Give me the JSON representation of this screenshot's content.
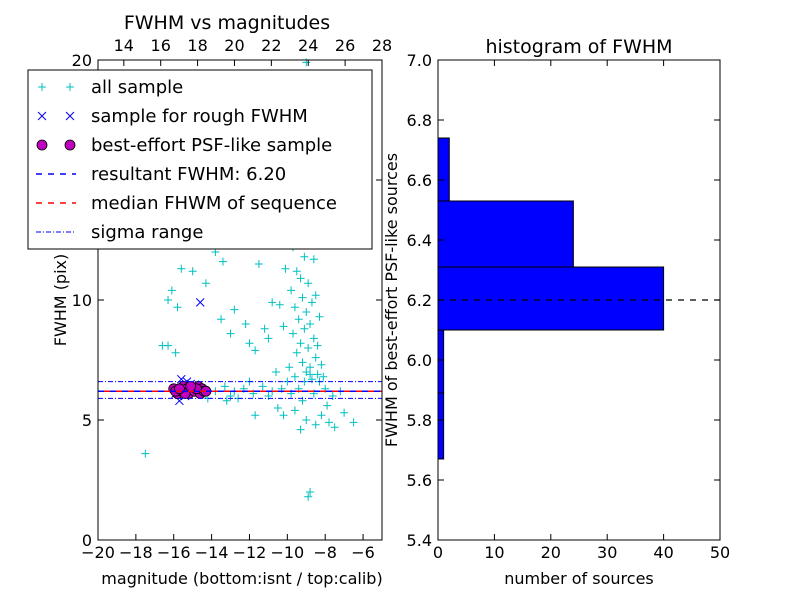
{
  "chart_data": [
    {
      "type": "scatter",
      "title": "FWHM vs magnitudes",
      "xlabel": "magnitude (bottom:isnt / top:calib)",
      "ylabel": "FWHM (pix)",
      "xlim": [
        -20,
        -5
      ],
      "ylim": [
        0,
        20
      ],
      "xticks": [
        -20,
        -18,
        -16,
        -14,
        -12,
        -10,
        -8,
        -6
      ],
      "yticks": [
        0,
        5,
        10,
        15,
        20
      ],
      "top_xlim": [
        12.6,
        28
      ],
      "top_xticks": [
        14,
        16,
        18,
        20,
        22,
        24,
        26,
        28
      ],
      "legend_position": "upper-left",
      "grid": false,
      "hlines": {
        "resultant": 6.2,
        "median": 6.2,
        "sigma_upper": 6.6,
        "sigma_lower": 5.9
      },
      "series": [
        {
          "name": "all sample",
          "marker": "plus",
          "color": "#00bfbf",
          "points": [
            [
              -9.0,
              19.9
            ],
            [
              -9.6,
              14.3
            ],
            [
              -9.2,
              13.2
            ],
            [
              -9.4,
              12.6
            ],
            [
              -9.7,
              12.2
            ],
            [
              -9.1,
              11.8
            ],
            [
              -9.5,
              11.2
            ],
            [
              -9.3,
              10.9
            ],
            [
              -8.9,
              10.7
            ],
            [
              -9.8,
              10.4
            ],
            [
              -9.2,
              10.1
            ],
            [
              -8.7,
              9.9
            ],
            [
              -9.6,
              9.7
            ],
            [
              -9.0,
              9.5
            ],
            [
              -9.4,
              9.2
            ],
            [
              -8.8,
              9.0
            ],
            [
              -9.1,
              8.8
            ],
            [
              -9.7,
              8.6
            ],
            [
              -8.6,
              8.4
            ],
            [
              -9.3,
              8.2
            ],
            [
              -8.9,
              8.0
            ],
            [
              -9.5,
              7.8
            ],
            [
              -8.5,
              7.6
            ],
            [
              -9.2,
              7.4
            ],
            [
              -8.8,
              7.2
            ],
            [
              -9.0,
              7.0
            ],
            [
              -8.4,
              6.9
            ],
            [
              -9.6,
              6.8
            ],
            [
              -8.7,
              6.7
            ],
            [
              -9.1,
              6.6
            ],
            [
              -10.0,
              13.8
            ],
            [
              -10.3,
              12.9
            ],
            [
              -10.1,
              11.3
            ],
            [
              -10.4,
              9.8
            ],
            [
              -10.2,
              8.9
            ],
            [
              -8.6,
              11.7
            ],
            [
              -8.5,
              10.2
            ],
            [
              -8.3,
              9.3
            ],
            [
              -8.4,
              8.1
            ],
            [
              -8.2,
              7.3
            ],
            [
              -11.5,
              11.5
            ],
            [
              -12.2,
              9.0
            ],
            [
              -11.0,
              8.4
            ],
            [
              -13.0,
              8.6
            ],
            [
              -12.8,
              9.6
            ],
            [
              -11.7,
              7.9
            ],
            [
              -13.5,
              9.2
            ],
            [
              -10.8,
              9.9
            ],
            [
              -12.0,
              8.2
            ],
            [
              -11.2,
              8.8
            ],
            [
              -16.1,
              10.4
            ],
            [
              -15.8,
              9.7
            ],
            [
              -16.3,
              8.1
            ],
            [
              -15.9,
              7.8
            ],
            [
              -16.6,
              8.1
            ],
            [
              -15.0,
              11.2
            ],
            [
              -14.3,
              10.7
            ],
            [
              -15.6,
              11.3
            ],
            [
              -13.8,
              12.0
            ],
            [
              -14.8,
              12.6
            ],
            [
              -15.3,
              12.9
            ],
            [
              -15.5,
              13.0
            ],
            [
              -16.0,
              12.4
            ],
            [
              -13.4,
              11.6
            ],
            [
              -16.3,
              10.0
            ],
            [
              -17.5,
              3.6
            ],
            [
              -7.0,
              5.3
            ],
            [
              -6.5,
              4.9
            ],
            [
              -7.5,
              4.7
            ],
            [
              -7.8,
              4.9
            ],
            [
              -8.2,
              5.2
            ],
            [
              -8.8,
              2.0
            ],
            [
              -8.9,
              1.8
            ],
            [
              -9.0,
              5.0
            ],
            [
              -9.3,
              4.6
            ],
            [
              -10.2,
              5.2
            ],
            [
              -11.7,
              5.2
            ],
            [
              -12.6,
              5.9
            ],
            [
              -13.2,
              5.8
            ],
            [
              -14.2,
              5.9
            ],
            [
              -10.5,
              5.5
            ],
            [
              -9.6,
              5.4
            ],
            [
              -8.5,
              4.8
            ],
            [
              -7.2,
              6.2
            ],
            [
              -7.6,
              6.0
            ],
            [
              -8.0,
              6.3
            ],
            [
              -8.3,
              6.6
            ],
            [
              -8.6,
              6.1
            ],
            [
              -9.4,
              6.3
            ],
            [
              -9.8,
              6.1
            ],
            [
              -10.3,
              6.3
            ],
            [
              -10.8,
              6.2
            ],
            [
              -11.3,
              6.4
            ],
            [
              -11.8,
              6.1
            ],
            [
              -12.3,
              6.3
            ],
            [
              -12.8,
              6.2
            ],
            [
              -13.3,
              6.4
            ],
            [
              -13.8,
              6.2
            ],
            [
              -14.3,
              6.1
            ],
            [
              -14.7,
              6.5
            ],
            [
              -15.2,
              6.4
            ],
            [
              -10.0,
              6.6
            ],
            [
              -11.0,
              6.0
            ],
            [
              -12.0,
              6.6
            ],
            [
              -13.0,
              6.0
            ],
            [
              -9.2,
              5.8
            ],
            [
              -8.8,
              6.9
            ],
            [
              -9.9,
              7.2
            ],
            [
              -10.6,
              7.0
            ],
            [
              -8.1,
              6.8
            ],
            [
              -7.9,
              5.6
            ]
          ]
        },
        {
          "name": "sample for rough FWHM",
          "marker": "x",
          "color": "#0000ff",
          "points": [
            [
              -14.6,
              9.9
            ],
            [
              -15.6,
              6.7
            ],
            [
              -15.3,
              6.6
            ],
            [
              -15.8,
              6.3
            ],
            [
              -15.4,
              6.0
            ],
            [
              -15.7,
              5.8
            ],
            [
              -15.2,
              6.2
            ],
            [
              -14.9,
              6.4
            ],
            [
              -15.9,
              6.1
            ],
            [
              -15.1,
              6.5
            ]
          ]
        },
        {
          "name": "best-effort PSF-like sample",
          "marker": "circle",
          "color": "#bf00bf",
          "points": [
            [
              -16.0,
              6.3
            ],
            [
              -15.8,
              6.1
            ],
            [
              -15.6,
              6.2
            ],
            [
              -15.5,
              6.4
            ],
            [
              -15.3,
              6.3
            ],
            [
              -15.2,
              6.1
            ],
            [
              -15.0,
              6.3
            ],
            [
              -14.9,
              6.2
            ],
            [
              -14.7,
              6.4
            ],
            [
              -14.6,
              6.1
            ],
            [
              -14.5,
              6.3
            ],
            [
              -14.4,
              6.2
            ],
            [
              -15.9,
              6.2
            ],
            [
              -15.4,
              6.1
            ],
            [
              -14.8,
              6.3
            ],
            [
              -15.1,
              6.4
            ],
            [
              -14.3,
              6.2
            ],
            [
              -15.7,
              6.3
            ]
          ]
        }
      ],
      "legend": [
        "all sample",
        "sample for rough FWHM",
        "best-effort PSF-like sample",
        "resultant FWHM: 6.20",
        "median FHWM of sequence",
        "sigma range"
      ],
      "legend_colors": [
        "#00bfbf",
        "#0000ff",
        "#bf00bf",
        "#0000ff",
        "#ff0000",
        "#0000ff"
      ]
    },
    {
      "type": "bar",
      "orientation": "horizontal",
      "title": "histogram of FWHM",
      "xlabel": "number of sources",
      "ylabel": "FWHM of best-effort PSF-like sources",
      "xlim": [
        0,
        50
      ],
      "ylim": [
        5.4,
        7.0
      ],
      "xticks": [
        0,
        10,
        20,
        30,
        40,
        50
      ],
      "yticks": [
        5.4,
        5.6,
        5.8,
        6.0,
        6.2,
        6.4,
        6.6,
        6.8,
        7.0
      ],
      "bar_color": "#0000ff",
      "median_line": 6.2,
      "bins": [
        {
          "lo": 5.67,
          "hi": 5.89,
          "count": 1
        },
        {
          "lo": 5.89,
          "hi": 6.1,
          "count": 1
        },
        {
          "lo": 6.1,
          "hi": 6.31,
          "count": 40
        },
        {
          "lo": 6.31,
          "hi": 6.53,
          "count": 24
        },
        {
          "lo": 6.53,
          "hi": 6.74,
          "count": 2
        }
      ]
    }
  ]
}
